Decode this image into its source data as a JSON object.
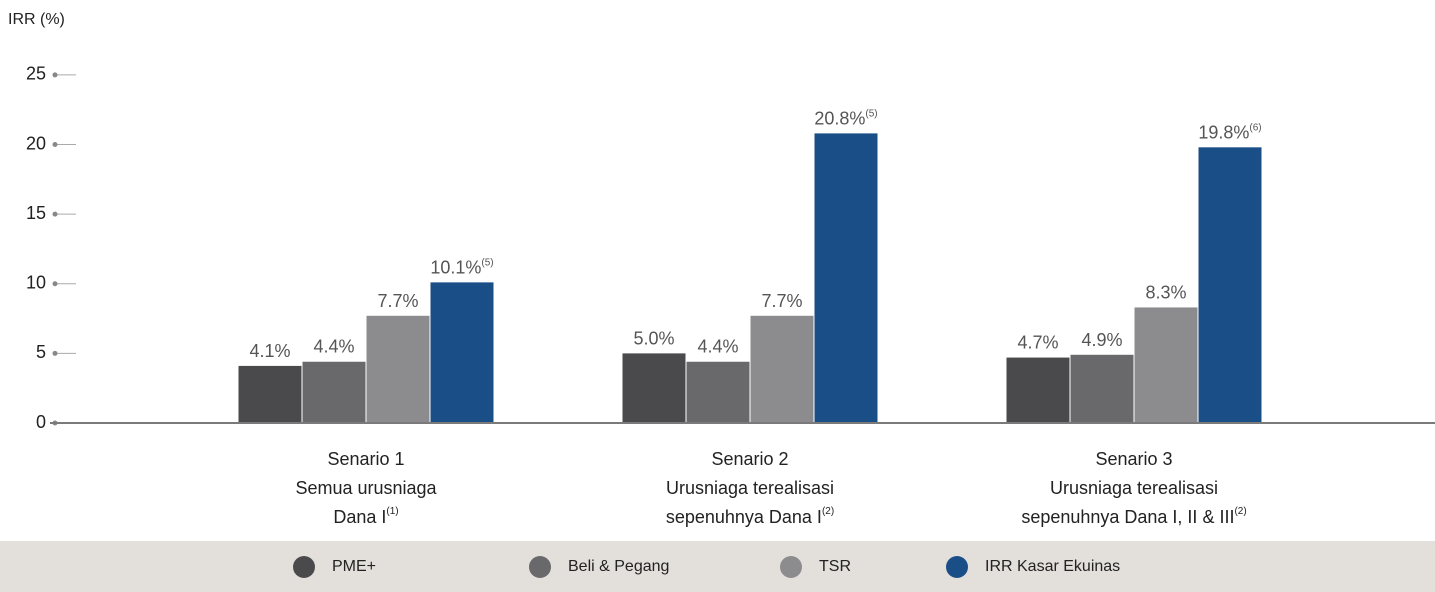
{
  "chart_data": {
    "type": "bar",
    "y_label": "IRR (%)",
    "categories": [
      [
        "Senario 1",
        "Semua urusniaga",
        "Dana I"
      ],
      [
        "Senario 2",
        "Urusniaga terealisasi",
        "sepenuhnya Dana I"
      ],
      [
        "Senario 3",
        "Urusniaga terealisasi",
        "sepenuhnya Dana I, II & III"
      ]
    ],
    "category_notes": [
      "(1)",
      "(2)",
      "(2)"
    ],
    "series": [
      {
        "name": "PME+",
        "color": "#4a4a4c",
        "values": [
          4.1,
          5.0,
          4.7
        ],
        "value_labels": [
          "4.1%",
          "5.0%",
          "4.7%"
        ]
      },
      {
        "name": "Beli & Pegang",
        "color": "#69696b",
        "values": [
          4.4,
          4.4,
          4.9
        ],
        "value_labels": [
          "4.4%",
          "4.4%",
          "4.9%"
        ]
      },
      {
        "name": "TSR",
        "color": "#8c8c8e",
        "values": [
          7.7,
          7.7,
          8.3
        ],
        "value_labels": [
          "7.7%",
          "7.7%",
          "8.3%"
        ]
      },
      {
        "name": "IRR Kasar Ekuinas",
        "color": "#1a4e87",
        "values": [
          10.1,
          20.8,
          19.8
        ],
        "value_labels": [
          "10.1%",
          "20.8%",
          "19.8%"
        ],
        "value_notes": [
          "(5)",
          "(5)",
          "(6)"
        ]
      }
    ],
    "ylim": [
      0,
      26
    ],
    "yticks": [
      0,
      5,
      10,
      15,
      20,
      25
    ],
    "legend": "bottom"
  }
}
